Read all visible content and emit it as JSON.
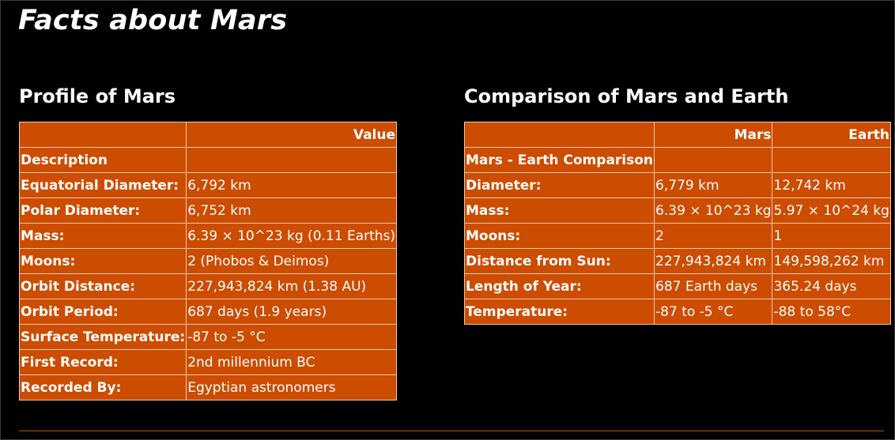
{
  "page": {
    "title": "Facts about Mars"
  },
  "profile": {
    "title": "Profile of Mars",
    "headers": [
      "",
      "Value"
    ],
    "rows": [
      {
        "label": "Description",
        "value": ""
      },
      {
        "label": "Equatorial Diameter:",
        "value": "6,792 km"
      },
      {
        "label": "Polar Diameter:",
        "value": "6,752 km"
      },
      {
        "label": "Mass:",
        "value": "6.39 × 10^23 kg (0.11 Earths)"
      },
      {
        "label": "Moons:",
        "value": "2 (Phobos & Deimos)"
      },
      {
        "label": "Orbit Distance:",
        "value": "227,943,824 km (1.38 AU)"
      },
      {
        "label": "Orbit Period:",
        "value": "687 days (1.9 years)"
      },
      {
        "label": "Surface Temperature:",
        "value": "-87 to -5 °C"
      },
      {
        "label": "First Record:",
        "value": "2nd millennium BC"
      },
      {
        "label": "Recorded By:",
        "value": "Egyptian astronomers"
      }
    ]
  },
  "comparison": {
    "title": "Comparison of Mars and Earth",
    "headers": [
      "",
      "Mars",
      "Earth"
    ],
    "rows": [
      {
        "label": "Mars - Earth Comparison",
        "mars": "",
        "earth": ""
      },
      {
        "label": "Diameter:",
        "mars": "6,779 km",
        "earth": "12,742 km"
      },
      {
        "label": "Mass:",
        "mars": "6.39 × 10^23 kg",
        "earth": "5.97 × 10^24 kg"
      },
      {
        "label": "Moons:",
        "mars": "2",
        "earth": "1"
      },
      {
        "label": "Distance from Sun:",
        "mars": "227,943,824 km",
        "earth": "149,598,262 km"
      },
      {
        "label": "Length of Year:",
        "mars": "687 Earth days",
        "earth": "365.24 days"
      },
      {
        "label": "Temperature:",
        "mars": "-87 to -5 °C",
        "earth": "-88 to 58°C"
      }
    ]
  },
  "colors": {
    "background": "#000000",
    "table_fill": "#cc4c00",
    "table_border": "#f0c8a8",
    "text": "#ffffff"
  }
}
